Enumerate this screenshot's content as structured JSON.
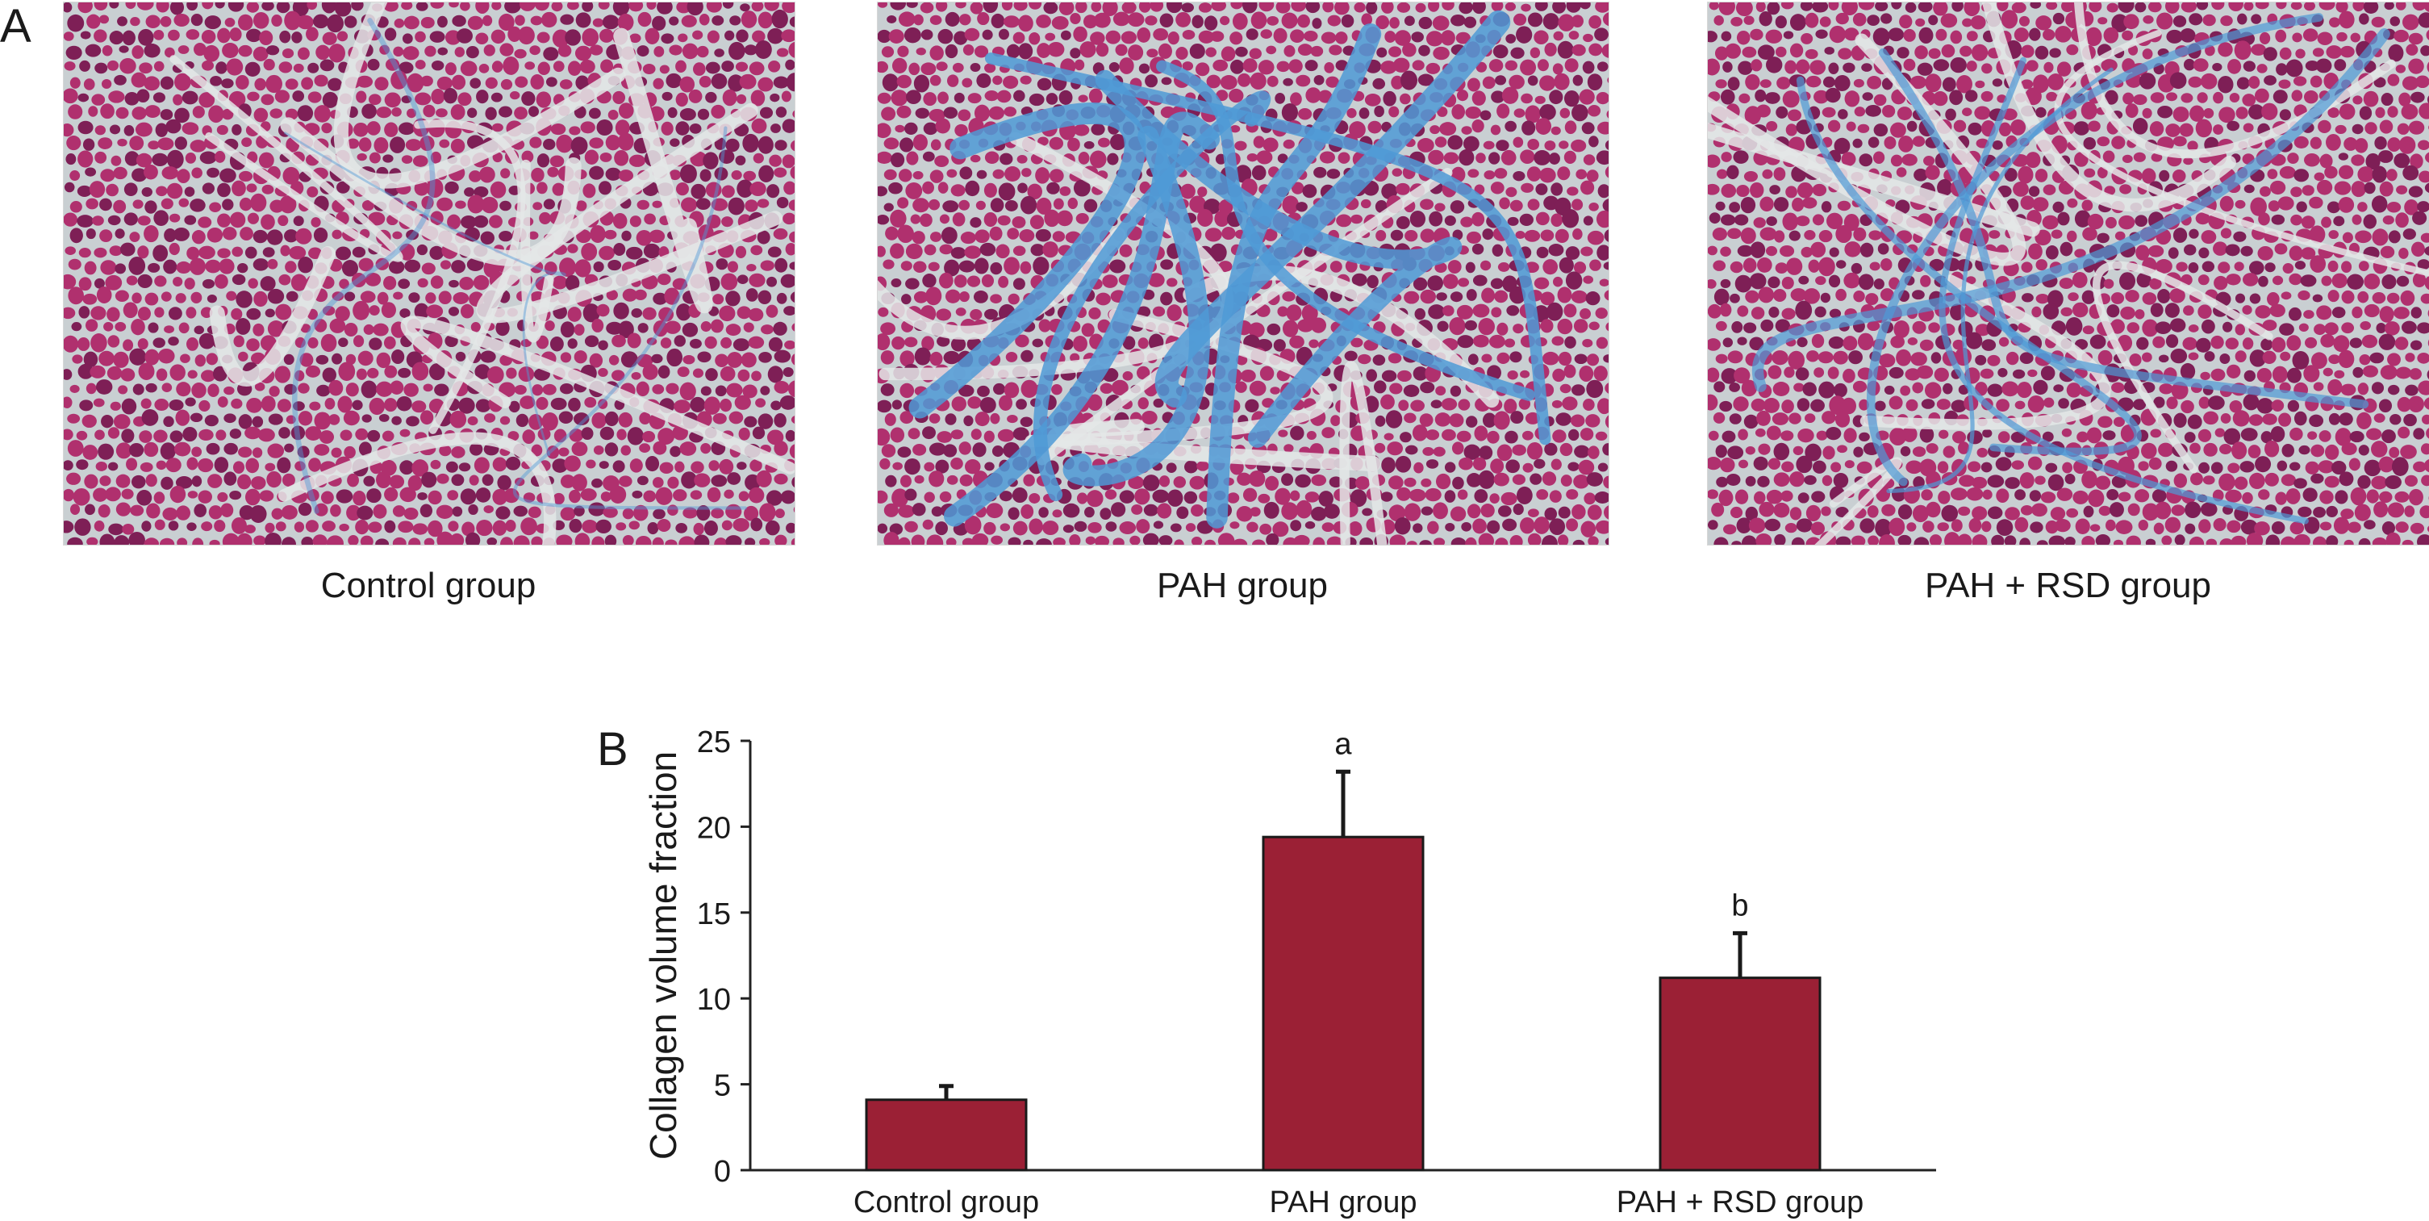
{
  "panel_a": {
    "letter": "A",
    "images": [
      {
        "caption": "Control group",
        "fibrosis": "low"
      },
      {
        "caption": "PAH group",
        "fibrosis": "high"
      },
      {
        "caption": "PAH + RSD group",
        "fibrosis": "moderate"
      }
    ]
  },
  "panel_b": {
    "letter": "B"
  },
  "colors": {
    "bar": "#9b2035",
    "muscle": "#b0306e",
    "muscle_dark": "#7e1f56",
    "interstitium": "#c9cfd2",
    "collagen": "#4f9ad6"
  },
  "chart_data": {
    "type": "bar",
    "categories": [
      "Control group",
      "PAH group",
      "PAH + RSD group"
    ],
    "values": [
      4.1,
      19.4,
      11.2
    ],
    "error_bars": [
      0.8,
      3.8,
      2.6
    ],
    "annotations": [
      "",
      "a",
      "b"
    ],
    "ylabel": "Collagen volume fraction",
    "xlabel": "",
    "ylim": [
      0,
      25
    ],
    "yticks": [
      0,
      5,
      10,
      15,
      20,
      25
    ],
    "grid": false
  }
}
